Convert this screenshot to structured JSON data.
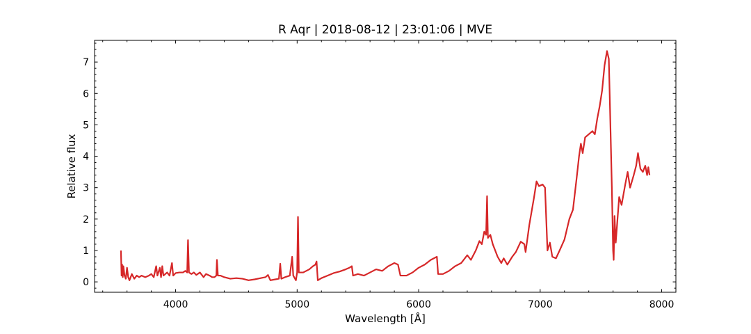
{
  "chart_data": {
    "type": "line",
    "title": "R Aqr | 2018-08-12 | 23:01:06 | MVE",
    "x_label": "Wavelength [Å]",
    "y_label": "Relative flux",
    "xlim": [
      3333,
      8117
    ],
    "ylim": [
      -0.33,
      7.69
    ],
    "xticks": [
      4000,
      5000,
      6000,
      7000,
      8000
    ],
    "yticks": [
      0,
      1,
      2,
      3,
      4,
      5,
      6,
      7
    ],
    "xminorticks": [
      3400,
      3600,
      3800,
      4200,
      4400,
      4600,
      4800,
      5200,
      5400,
      5600,
      5800,
      6200,
      6400,
      6600,
      6800,
      7200,
      7400,
      7600,
      7800
    ],
    "yminorticks": [
      -0.2,
      0.2,
      0.4,
      0.6,
      0.8,
      1.2,
      1.4,
      1.6,
      1.8,
      2.2,
      2.4,
      2.6,
      2.8,
      3.2,
      3.4,
      3.6,
      3.8,
      4.2,
      4.4,
      4.6,
      4.8,
      5.2,
      5.4,
      5.6,
      5.8,
      6.2,
      6.4,
      6.6,
      6.8,
      7.2,
      7.4,
      7.6
    ],
    "ticks_direction": "in",
    "x": [
      3550,
      3555,
      3560,
      3565,
      3570,
      3580,
      3590,
      3600,
      3610,
      3620,
      3640,
      3660,
      3680,
      3700,
      3720,
      3750,
      3780,
      3800,
      3820,
      3840,
      3850,
      3870,
      3880,
      3890,
      3900,
      3930,
      3950,
      3970,
      3980,
      4000,
      4030,
      4060,
      4080,
      4095,
      4102,
      4110,
      4130,
      4150,
      4170,
      4200,
      4230,
      4250,
      4280,
      4300,
      4320,
      4335,
      4340,
      4348,
      4370,
      4400,
      4450,
      4500,
      4550,
      4600,
      4650,
      4700,
      4740,
      4760,
      4780,
      4820,
      4850,
      4861,
      4870,
      4900,
      4940,
      4959,
      4968,
      4990,
      5000,
      5007,
      5014,
      5050,
      5100,
      5130,
      5150,
      5160,
      5170,
      5200,
      5250,
      5300,
      5350,
      5400,
      5430,
      5450,
      5460,
      5500,
      5550,
      5600,
      5650,
      5700,
      5750,
      5800,
      5830,
      5850,
      5900,
      5950,
      6000,
      6050,
      6100,
      6150,
      6160,
      6200,
      6250,
      6300,
      6350,
      6400,
      6430,
      6470,
      6500,
      6520,
      6540,
      6555,
      6563,
      6570,
      6590,
      6610,
      6650,
      6680,
      6700,
      6730,
      6770,
      6800,
      6840,
      6870,
      6880,
      6910,
      6950,
      6970,
      6990,
      7020,
      7040,
      7060,
      7080,
      7100,
      7130,
      7160,
      7200,
      7240,
      7270,
      7300,
      7320,
      7335,
      7350,
      7370,
      7400,
      7430,
      7450,
      7470,
      7490,
      7510,
      7530,
      7550,
      7565,
      7575,
      7590,
      7600,
      7605,
      7612,
      7622,
      7650,
      7670,
      7700,
      7720,
      7740,
      7770,
      7790,
      7805,
      7825,
      7845,
      7865,
      7880,
      7890,
      7900
    ],
    "series": [
      {
        "color": "#d62728",
        "values": [
          1.0,
          0.2,
          0.55,
          0.15,
          0.5,
          0.2,
          0.1,
          0.45,
          0.15,
          0.05,
          0.25,
          0.1,
          0.2,
          0.15,
          0.2,
          0.15,
          0.2,
          0.25,
          0.15,
          0.5,
          0.2,
          0.45,
          0.15,
          0.5,
          0.2,
          0.3,
          0.2,
          0.6,
          0.2,
          0.28,
          0.3,
          0.3,
          0.35,
          0.3,
          1.33,
          0.3,
          0.25,
          0.3,
          0.22,
          0.3,
          0.15,
          0.25,
          0.2,
          0.15,
          0.15,
          0.2,
          0.7,
          0.2,
          0.2,
          0.15,
          0.1,
          0.12,
          0.1,
          0.05,
          0.08,
          0.12,
          0.15,
          0.22,
          0.05,
          0.08,
          0.1,
          0.58,
          0.1,
          0.15,
          0.2,
          0.8,
          0.2,
          0.05,
          0.3,
          2.07,
          0.3,
          0.3,
          0.4,
          0.5,
          0.55,
          0.65,
          0.05,
          0.12,
          0.2,
          0.28,
          0.33,
          0.4,
          0.45,
          0.5,
          0.2,
          0.25,
          0.2,
          0.3,
          0.4,
          0.35,
          0.5,
          0.6,
          0.55,
          0.2,
          0.2,
          0.3,
          0.45,
          0.55,
          0.7,
          0.8,
          0.25,
          0.25,
          0.35,
          0.5,
          0.6,
          0.85,
          0.7,
          1.0,
          1.3,
          1.2,
          1.6,
          1.5,
          2.73,
          1.4,
          1.5,
          1.2,
          0.8,
          0.6,
          0.75,
          0.55,
          0.8,
          0.95,
          1.28,
          1.2,
          0.95,
          1.8,
          2.7,
          3.2,
          3.05,
          3.1,
          3.0,
          1.0,
          1.25,
          0.8,
          0.75,
          1.0,
          1.35,
          2.0,
          2.3,
          3.3,
          4.0,
          4.4,
          4.1,
          4.6,
          4.7,
          4.8,
          4.7,
          5.2,
          5.6,
          6.1,
          6.9,
          7.35,
          7.1,
          5.5,
          3.0,
          1.0,
          0.7,
          2.1,
          1.25,
          2.7,
          2.45,
          3.1,
          3.5,
          3.0,
          3.4,
          3.7,
          4.1,
          3.6,
          3.5,
          3.7,
          3.4,
          3.65,
          3.4
        ]
      }
    ]
  }
}
